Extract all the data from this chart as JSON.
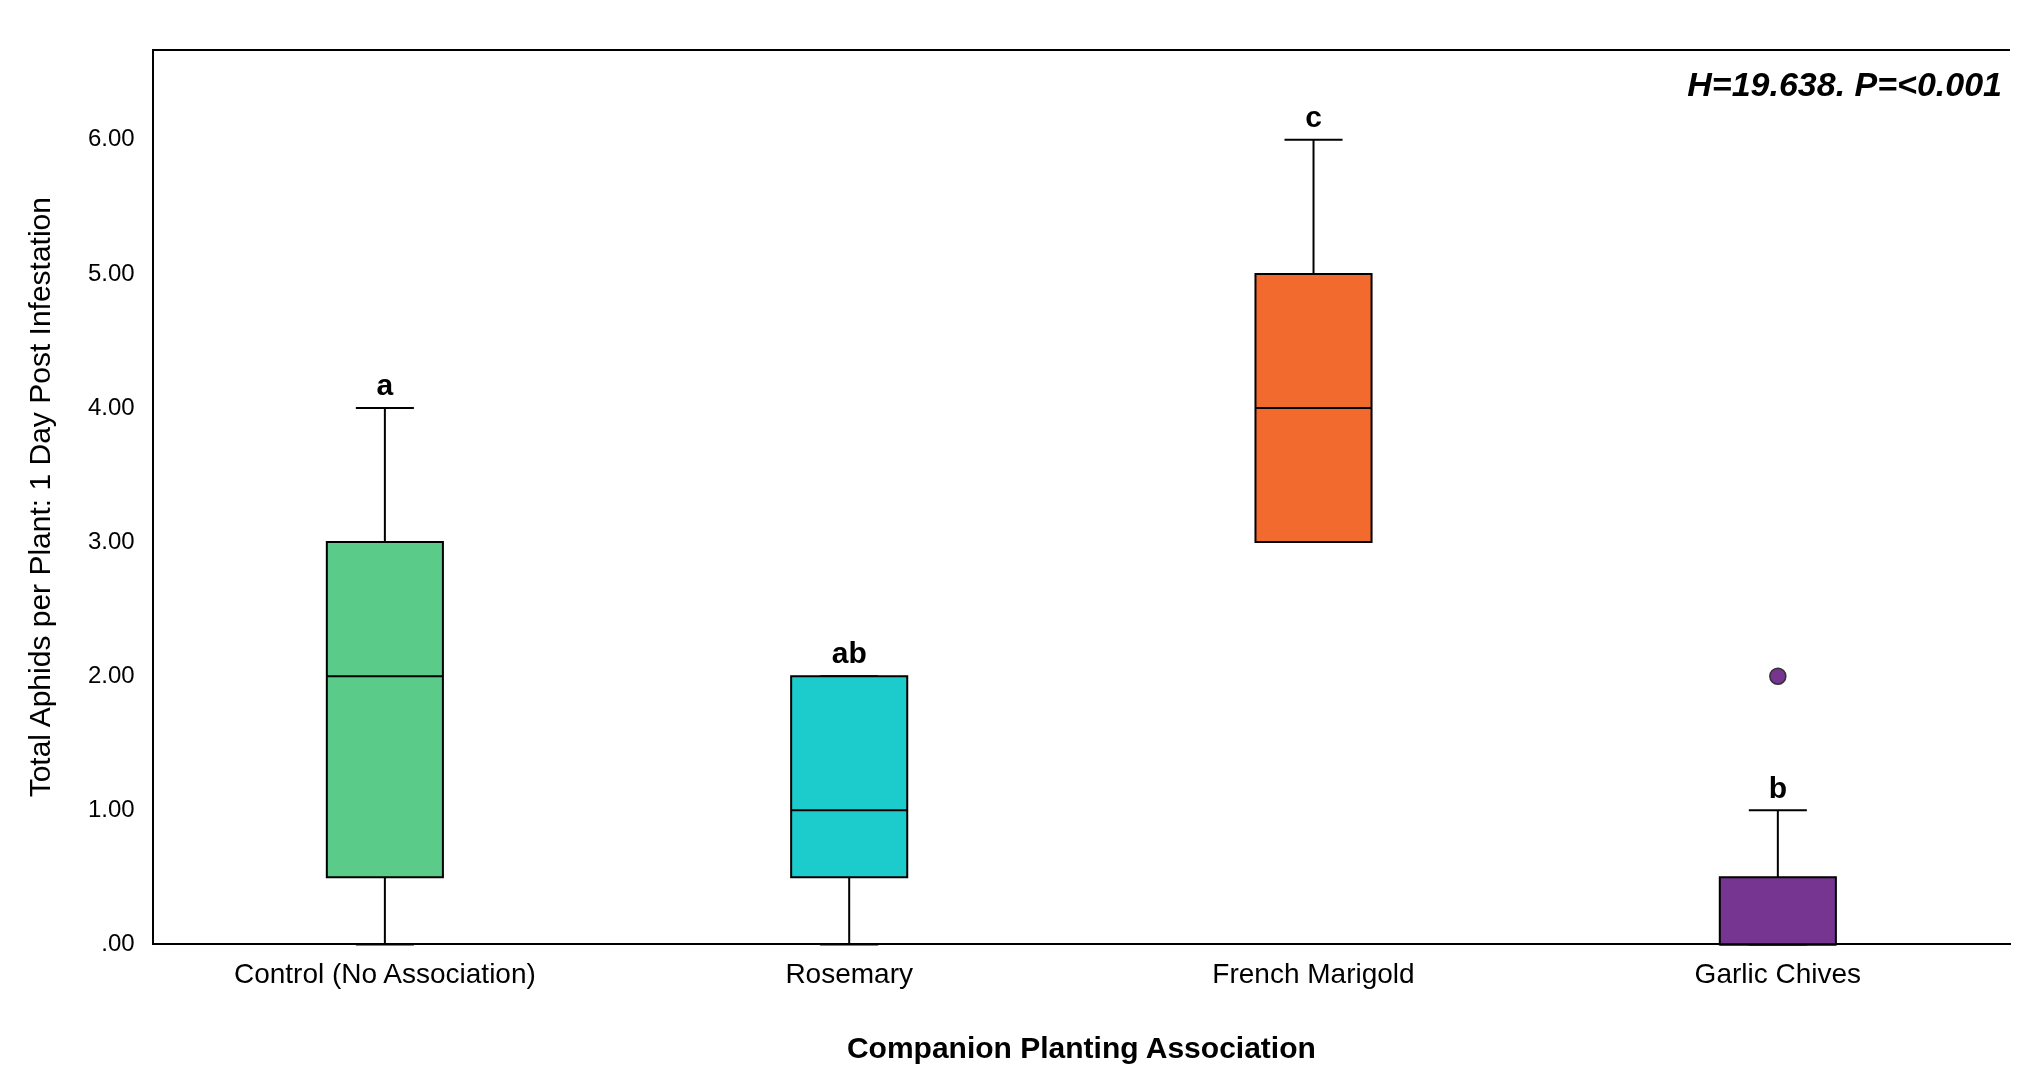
{
  "chart_data": {
    "type": "box",
    "xlabel": "Companion Planting Association",
    "ylabel": "Total Aphids per Plant: 1 Day Post Infestation",
    "categories": [
      "Control (No Association)",
      "Rosemary",
      "French Marigold",
      "Garlic Chives"
    ],
    "colors": [
      "#5bcb8a",
      "#1ccccc",
      "#f26a2e",
      "#763591"
    ],
    "boxes": [
      {
        "low": 0,
        "q1": 0.5,
        "median": 2,
        "q3": 3,
        "high": 4
      },
      {
        "low": 0,
        "q1": 0.5,
        "median": 1,
        "q3": 2,
        "high": 2
      },
      {
        "low": 3,
        "q1": 3,
        "median": 4,
        "q3": 5,
        "high": 6
      },
      {
        "low": 0,
        "q1": 0,
        "median": 0,
        "q3": 0.5,
        "high": 1,
        "outliers": [
          2
        ]
      }
    ],
    "ylim": [
      0,
      6.67
    ],
    "yticks": [
      {
        "value": 0,
        "label": ".00"
      },
      {
        "value": 1,
        "label": "1.00"
      },
      {
        "value": 2,
        "label": "2.00"
      },
      {
        "value": 3,
        "label": "3.00"
      },
      {
        "value": 4,
        "label": "4.00"
      },
      {
        "value": 5,
        "label": "5.00"
      },
      {
        "value": 6,
        "label": "6.00"
      }
    ],
    "grid": false,
    "legend": false,
    "annotations": [
      {
        "text": "a",
        "x": "Control (No Association)",
        "y": 4
      },
      {
        "text": "ab",
        "x": "Rosemary",
        "y": 2
      },
      {
        "text": "c",
        "x": "French Marigold",
        "y": 6
      },
      {
        "text": "b",
        "x": "Garlic Chives",
        "y": 1
      },
      "H=19.638. P=<0.001"
    ]
  }
}
